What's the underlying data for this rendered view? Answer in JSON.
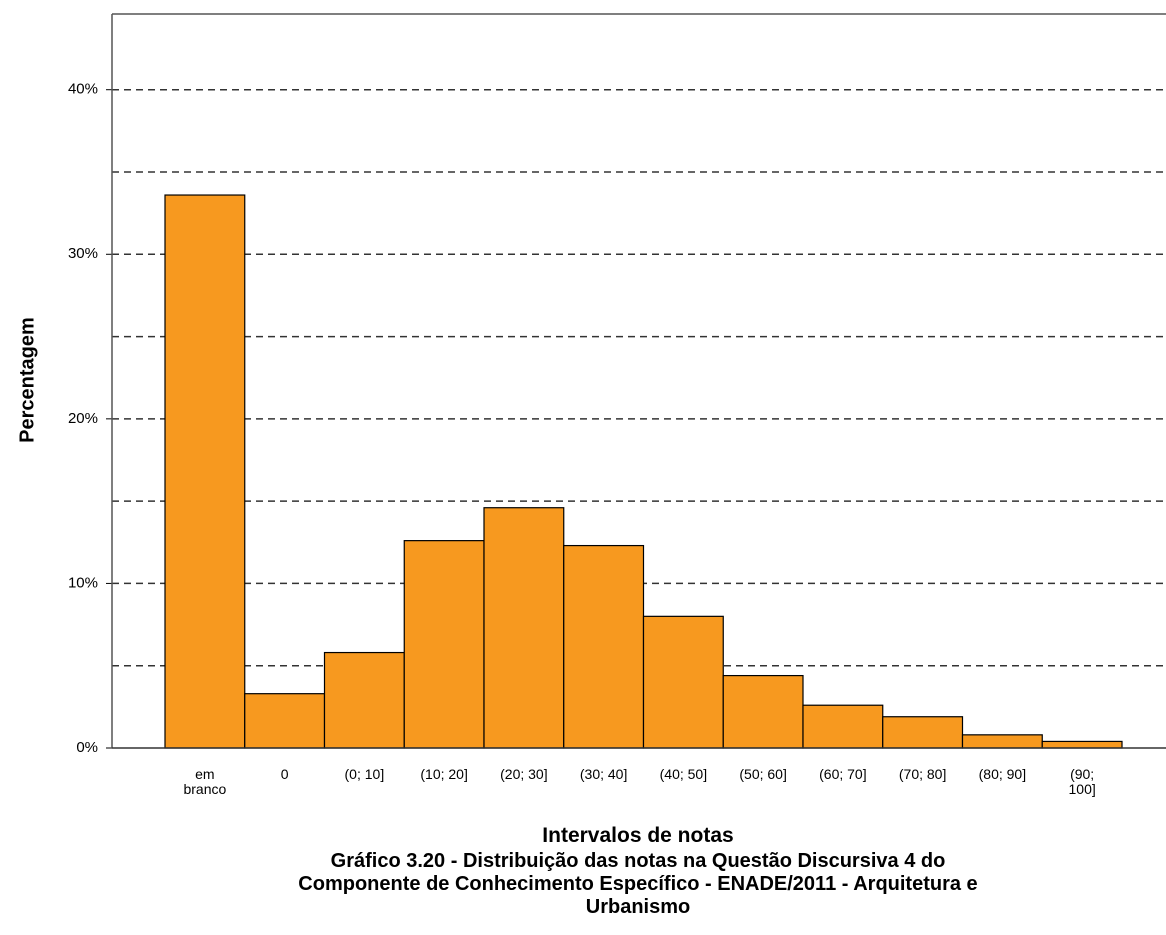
{
  "chart_data": {
    "type": "bar",
    "title": "Gráfico 3.20 - Distribuição das      notas na Questão Discursiva 4 do\nComponente de Conhecimento Específico - ENADE/2011 - Arquitetura e\nUrbanismo",
    "x_label": "Intervalos de notas",
    "y_label": "Percentagem",
    "categories": [
      "em\nbranco",
      "0",
      "(0; 10]",
      "(10; 20]",
      "(20; 30]",
      "(30; 40]",
      "(40; 50]",
      "(50; 60]",
      "(60; 70]",
      "(70; 80]",
      "(80; 90]",
      "(90;\n100]"
    ],
    "values": [
      33.6,
      3.3,
      5.8,
      12.6,
      14.6,
      12.3,
      8.0,
      4.4,
      2.6,
      1.9,
      0.8,
      0.4
    ],
    "color": "#f7991f",
    "ylim": [
      0,
      44.6
    ],
    "yticks": [
      {
        "value": 0,
        "label": "0%"
      },
      {
        "value": 10,
        "label": "10%"
      },
      {
        "value": 20,
        "label": "20%"
      },
      {
        "value": 30,
        "label": "30%"
      },
      {
        "value": 40,
        "label": "40%"
      }
    ],
    "minor_grid": [
      5,
      15,
      25,
      35
    ],
    "grid": true
  }
}
